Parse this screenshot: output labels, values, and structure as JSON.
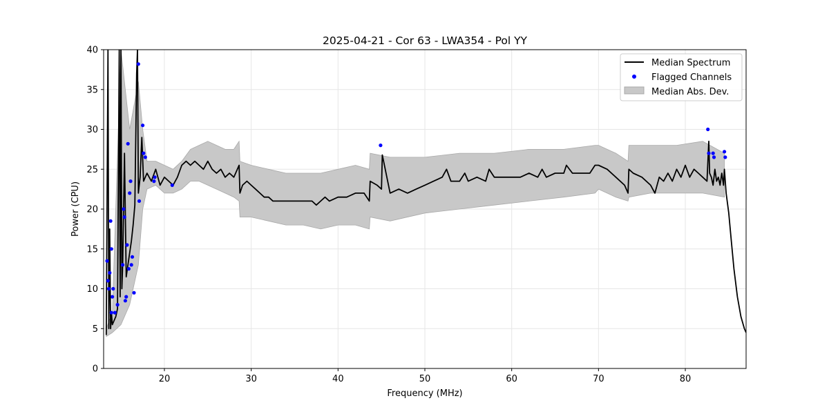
{
  "chart_data": {
    "type": "line",
    "title": "2025-04-21 - Cor 63 - LWA354 - Pol YY",
    "xlabel": "Frequency (MHz)",
    "ylabel": "Power (CPU)",
    "xlim": [
      13,
      87
    ],
    "ylim": [
      0,
      40
    ],
    "x_ticks": [
      20,
      30,
      40,
      50,
      60,
      70,
      80
    ],
    "y_ticks": [
      0,
      5,
      10,
      15,
      20,
      25,
      30,
      35,
      40
    ],
    "grid": true,
    "legend_position": "top-right",
    "series": [
      {
        "name": "Median Spectrum",
        "kind": "line",
        "color": "#000000",
        "x": [
          13.3,
          13.5,
          13.6,
          13.7,
          13.8,
          13.9,
          14.0,
          14.2,
          14.4,
          14.6,
          14.8,
          14.9,
          15.0,
          15.1,
          15.2,
          15.4,
          15.6,
          15.8,
          16.0,
          16.2,
          16.4,
          16.6,
          16.8,
          16.9,
          17.0,
          17.2,
          17.4,
          17.6,
          17.8,
          18.0,
          18.5,
          19.0,
          19.5,
          20.0,
          20.5,
          21.0,
          21.5,
          22.0,
          22.5,
          23.0,
          23.5,
          24.0,
          24.5,
          25.0,
          25.5,
          26.0,
          26.5,
          27.0,
          27.5,
          28.0,
          28.6,
          28.7,
          29.0,
          29.5,
          30.0,
          30.5,
          31.0,
          31.5,
          32.0,
          32.5,
          33.0,
          34.0,
          35.0,
          36.0,
          37.0,
          37.5,
          38.0,
          38.5,
          39.0,
          40.0,
          41.0,
          42.0,
          43.0,
          43.6,
          43.7,
          44.5,
          45.0,
          45.1,
          46.0,
          47.0,
          48.0,
          49.0,
          50.0,
          51.0,
          52.0,
          52.5,
          53.0,
          54.0,
          54.6,
          55.0,
          56.0,
          57.0,
          57.4,
          58.0,
          59.0,
          60.0,
          61.0,
          62.0,
          63.0,
          63.5,
          64.0,
          65.0,
          66.0,
          66.3,
          67.0,
          68.0,
          69.0,
          69.6,
          70.0,
          71.0,
          72.0,
          73.0,
          73.4,
          73.5,
          74.0,
          75.0,
          76.0,
          76.5,
          77.0,
          77.5,
          78.0,
          78.5,
          79.0,
          79.5,
          80.0,
          80.5,
          81.0,
          81.5,
          82.0,
          82.5,
          82.7,
          82.8,
          83.0,
          83.2,
          83.4,
          83.6,
          83.8,
          84.0,
          84.2,
          84.4,
          84.5,
          84.7,
          85.0,
          85.3,
          85.6,
          86.0,
          86.4,
          86.8,
          87.0
        ],
        "y": [
          4.2,
          40.0,
          5.0,
          17.5,
          5.0,
          7.0,
          5.5,
          6.0,
          6.5,
          7.5,
          40.0,
          9.0,
          40.0,
          10.0,
          13.0,
          27.0,
          11.5,
          13.0,
          14.5,
          16.0,
          18.0,
          20.5,
          37.0,
          40.0,
          22.0,
          24.0,
          29.0,
          23.5,
          24.0,
          24.5,
          23.5,
          25.0,
          23.0,
          24.0,
          23.5,
          23.0,
          24.0,
          25.5,
          26.0,
          25.5,
          26.0,
          25.5,
          25.0,
          26.0,
          25.0,
          24.5,
          25.0,
          24.0,
          24.5,
          24.0,
          25.5,
          22.0,
          23.0,
          23.5,
          23.0,
          22.5,
          22.0,
          21.5,
          21.5,
          21.0,
          21.0,
          21.0,
          21.0,
          21.0,
          21.0,
          20.5,
          21.0,
          21.5,
          21.0,
          21.5,
          21.5,
          22.0,
          22.0,
          21.0,
          23.5,
          23.0,
          22.5,
          26.8,
          22.0,
          22.5,
          22.0,
          22.5,
          23.0,
          23.5,
          24.0,
          25.0,
          23.5,
          23.5,
          24.5,
          23.5,
          24.0,
          23.5,
          25.0,
          24.0,
          24.0,
          24.0,
          24.0,
          24.5,
          24.0,
          25.0,
          24.0,
          24.5,
          24.5,
          25.5,
          24.5,
          24.5,
          24.5,
          25.5,
          25.5,
          25.0,
          24.0,
          23.0,
          22.0,
          25.0,
          24.5,
          24.0,
          23.0,
          22.0,
          24.0,
          23.5,
          24.5,
          23.5,
          25.0,
          24.0,
          25.5,
          24.0,
          25.0,
          24.5,
          24.0,
          23.5,
          28.5,
          24.5,
          24.0,
          23.0,
          25.0,
          23.5,
          24.0,
          23.0,
          24.5,
          23.0,
          25.0,
          22.0,
          19.5,
          16.0,
          12.5,
          9.0,
          6.5,
          5.0,
          4.5
        ]
      },
      {
        "name": "Flagged Channels",
        "kind": "scatter",
        "color": "#0000ff",
        "x": [
          13.4,
          13.5,
          13.6,
          13.7,
          13.8,
          13.9,
          13.9,
          14.0,
          14.1,
          14.3,
          14.6,
          15.2,
          15.3,
          15.4,
          15.5,
          15.6,
          15.7,
          15.8,
          15.9,
          16.0,
          16.1,
          16.2,
          16.3,
          16.5,
          17.0,
          17.1,
          17.5,
          17.6,
          17.8,
          18.8,
          18.9,
          20.9,
          44.9,
          82.6,
          82.7,
          83.2,
          83.3,
          84.5,
          84.6
        ],
        "y": [
          13.5,
          11.0,
          10.0,
          12.0,
          18.5,
          15.0,
          7.0,
          9.0,
          10.0,
          7.0,
          8.0,
          13.0,
          20.0,
          19.0,
          8.5,
          9.0,
          15.5,
          28.2,
          12.5,
          22.0,
          23.5,
          13.0,
          14.0,
          9.5,
          38.2,
          21.0,
          30.5,
          27.0,
          26.5,
          23.5,
          24.0,
          23.0,
          28.0,
          30.0,
          27.0,
          27.0,
          26.5,
          27.2,
          26.5
        ]
      },
      {
        "name": "Median Abs. Dev.",
        "kind": "band",
        "color": "#b0b0b0",
        "x": [
          13.3,
          14.0,
          15.0,
          16.0,
          17.0,
          17.5,
          18.0,
          19.0,
          20.0,
          21.0,
          22.0,
          23.0,
          24.0,
          25.0,
          26.0,
          27.0,
          28.0,
          28.6,
          28.7,
          30.0,
          32.0,
          34.0,
          36.0,
          38.0,
          40.0,
          42.0,
          43.6,
          43.7,
          46.0,
          50.0,
          54.0,
          58.0,
          62.0,
          66.0,
          69.6,
          70.0,
          72.0,
          73.4,
          73.5,
          76.0,
          79.0,
          82.0,
          84.5
        ],
        "lower": [
          4.0,
          4.5,
          5.5,
          8.0,
          13.0,
          20.0,
          22.5,
          23.0,
          22.0,
          22.0,
          22.5,
          23.5,
          23.5,
          23.0,
          22.5,
          22.0,
          21.5,
          21.0,
          19.0,
          19.0,
          18.5,
          18.0,
          18.0,
          17.5,
          18.0,
          18.0,
          17.5,
          19.0,
          18.5,
          19.5,
          20.0,
          20.5,
          21.0,
          21.5,
          22.0,
          22.5,
          21.5,
          21.0,
          21.5,
          22.0,
          22.0,
          22.0,
          21.5
        ],
        "upper": [
          5.0,
          7.0,
          40.0,
          30.0,
          36.0,
          30.0,
          26.0,
          26.0,
          25.5,
          25.0,
          26.0,
          27.5,
          28.0,
          28.5,
          28.0,
          27.5,
          27.5,
          28.5,
          26.0,
          25.5,
          25.0,
          24.5,
          24.5,
          24.5,
          25.0,
          25.5,
          25.0,
          27.0,
          26.5,
          26.5,
          27.0,
          27.0,
          27.5,
          27.5,
          28.0,
          28.0,
          27.0,
          26.0,
          28.0,
          28.0,
          28.0,
          28.5,
          27.0
        ]
      }
    ]
  }
}
